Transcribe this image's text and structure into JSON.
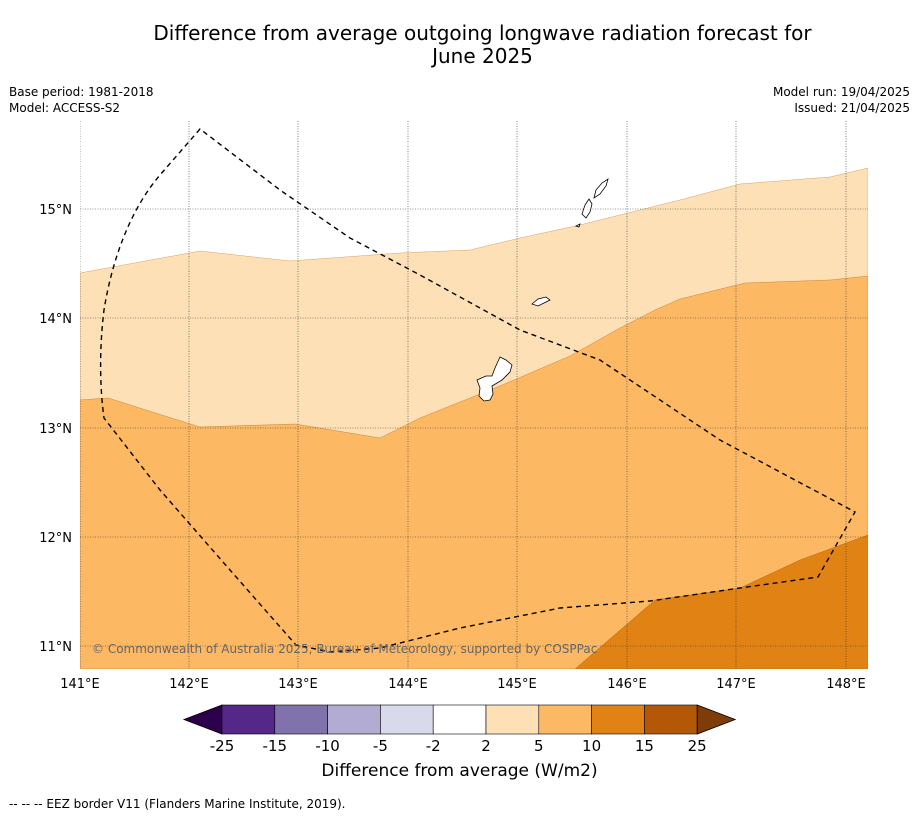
{
  "title_line1": "Difference from average outgoing longwave radiation forecast for",
  "title_line2": "June 2025",
  "meta_left": [
    "Base period: 1981-2018",
    "Model: ACCESS-S2"
  ],
  "meta_right": [
    "Model run: 19/04/2025",
    "Issued: 21/04/2025"
  ],
  "lat_labels": [
    "15°N",
    "14°N",
    "13°N",
    "12°N",
    "11°N"
  ],
  "lon_labels": [
    "141°E",
    "142°E",
    "143°E",
    "144°E",
    "145°E",
    "146°E",
    "147°E",
    "148°E"
  ],
  "copyright": "© Commonwealth of Australia 2025, Bureau of Meteorology, supported by COSPPac",
  "colorbar": {
    "title": "Difference from average (W/m2)",
    "ticks": [
      "-25",
      "-15",
      "-10",
      "-5",
      "-2",
      "2",
      "5",
      "10",
      "15",
      "25"
    ],
    "colors": {
      "below_min": "#2d004b",
      "bins": [
        "#542788",
        "#8073ac",
        "#b2abd2",
        "#d8daeb",
        "#ffffff",
        "#fee0b6",
        "#fdb863",
        "#e08214",
        "#b35806"
      ],
      "above_max": "#7f3b08"
    }
  },
  "footer": "--  --  -- EEZ border V11 (Flanders Marine Institute, 2019)."
}
